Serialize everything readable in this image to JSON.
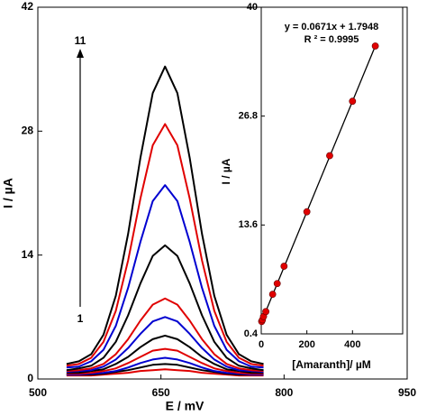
{
  "chart_data": [
    {
      "type": "line",
      "xlabel": "E / mV",
      "ylabel": "I / µA",
      "xlim": [
        500,
        950
      ],
      "xticks": [
        500,
        650,
        800,
        950
      ],
      "ylim": [
        0,
        42
      ],
      "yticks": [
        0,
        14,
        28,
        42
      ],
      "annotations": [
        "11",
        "1"
      ],
      "x": [
        535,
        550,
        565,
        580,
        595,
        610,
        625,
        640,
        655,
        670,
        685,
        700,
        715,
        730,
        745,
        760,
        775
      ],
      "series": [
        {
          "color": "#e00000",
          "values": [
            0.4,
            0.4,
            0.4,
            0.5,
            0.6,
            0.7,
            0.9,
            1.0,
            1.1,
            1.0,
            0.9,
            0.7,
            0.6,
            0.5,
            0.4,
            0.4,
            0.4
          ]
        },
        {
          "color": "#000000",
          "values": [
            0.5,
            0.5,
            0.5,
            0.6,
            0.8,
            1.0,
            1.3,
            1.6,
            1.7,
            1.6,
            1.3,
            1.0,
            0.8,
            0.6,
            0.5,
            0.5,
            0.5
          ]
        },
        {
          "color": "#0000d0",
          "values": [
            0.5,
            0.5,
            0.6,
            0.7,
            0.9,
            1.3,
            1.8,
            2.2,
            2.4,
            2.2,
            1.8,
            1.3,
            0.9,
            0.7,
            0.6,
            0.5,
            0.5
          ]
        },
        {
          "color": "#e00000",
          "values": [
            0.6,
            0.6,
            0.7,
            0.9,
            1.2,
            1.8,
            2.5,
            3.2,
            3.4,
            3.2,
            2.5,
            1.8,
            1.2,
            0.9,
            0.7,
            0.6,
            0.6
          ]
        },
        {
          "color": "#000000",
          "values": [
            0.7,
            0.7,
            0.9,
            1.1,
            1.7,
            2.5,
            3.6,
            4.5,
            4.9,
            4.5,
            3.6,
            2.5,
            1.7,
            1.1,
            0.9,
            0.7,
            0.7
          ]
        },
        {
          "color": "#0000d0",
          "values": [
            0.8,
            0.9,
            1.0,
            1.4,
            2.2,
            3.5,
            5.1,
            6.5,
            7.0,
            6.5,
            5.1,
            3.5,
            2.2,
            1.4,
            1.0,
            0.9,
            0.8
          ]
        },
        {
          "color": "#e00000",
          "values": [
            0.9,
            1.0,
            1.2,
            1.7,
            2.8,
            4.5,
            6.6,
            8.4,
            9.1,
            8.4,
            6.6,
            4.5,
            2.8,
            1.7,
            1.2,
            1.0,
            0.9
          ]
        },
        {
          "color": "#000000",
          "values": [
            1.0,
            1.2,
            1.5,
            2.4,
            4.2,
            7.2,
            10.8,
            13.9,
            15.1,
            13.9,
            10.8,
            7.2,
            4.2,
            2.4,
            1.5,
            1.2,
            1.0
          ]
        },
        {
          "color": "#0000d0",
          "values": [
            1.3,
            1.4,
            2.0,
            3.3,
            6.0,
            10.3,
            15.5,
            20.1,
            21.9,
            20.1,
            15.5,
            10.3,
            6.0,
            3.3,
            2.0,
            1.4,
            1.3
          ]
        },
        {
          "color": "#e00000",
          "values": [
            1.5,
            1.7,
            2.4,
            4.2,
            7.7,
            13.4,
            20.4,
            26.4,
            28.8,
            26.4,
            20.4,
            13.4,
            7.7,
            4.2,
            2.4,
            1.7,
            1.5
          ]
        },
        {
          "color": "#000000",
          "values": [
            1.7,
            2.0,
            2.8,
            5.0,
            9.4,
            16.4,
            25.0,
            32.3,
            35.3,
            32.3,
            25.0,
            16.4,
            9.4,
            5.0,
            2.8,
            2.0,
            1.7
          ]
        }
      ]
    },
    {
      "type": "scatter",
      "xlabel": "[Amaranth]/ µM",
      "ylabel": "I / µA",
      "annotations": [
        "y = 0.0671x + 1.7948",
        "R ² =  0.9995"
      ],
      "xlim": [
        0,
        620
      ],
      "xticks": [
        0,
        200,
        400
      ],
      "ylim": [
        0.4,
        40
      ],
      "yticks": [
        0.4,
        13.6,
        26.8,
        40
      ],
      "color": "#e00000",
      "x": [
        2,
        5,
        10,
        20,
        50,
        70,
        100,
        200,
        300,
        400,
        500
      ],
      "values": [
        1.9,
        2.1,
        2.5,
        3.1,
        5.2,
        6.5,
        8.6,
        15.2,
        22.0,
        28.6,
        35.3
      ],
      "fit_line": {
        "x": [
          0,
          500
        ],
        "values": [
          1.8,
          35.3
        ]
      }
    }
  ]
}
